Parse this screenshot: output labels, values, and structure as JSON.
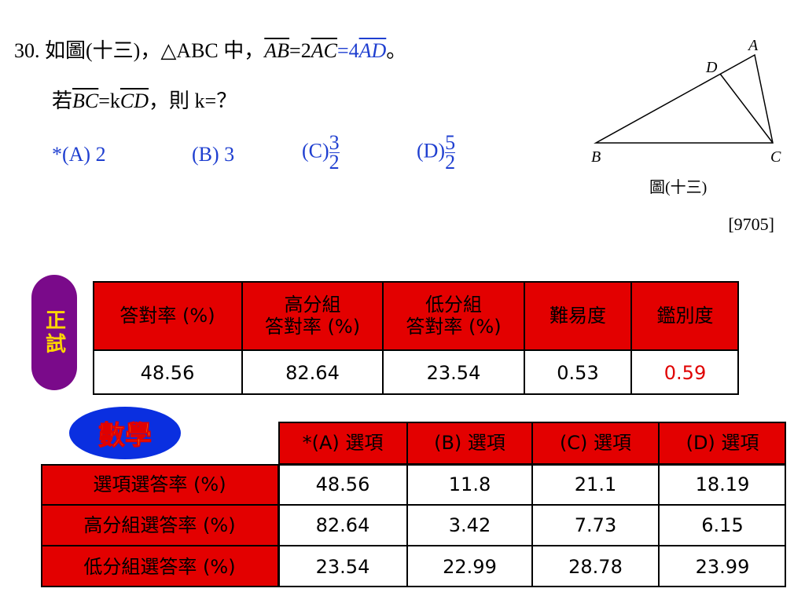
{
  "question": {
    "number": "30.",
    "line1": {
      "intro": "如圖(十三)，△ABC 中，",
      "seg1": "AB",
      "eq1": "=2",
      "seg2": "AC",
      "eq2": "=4",
      "seg3": "AD",
      "end": "。"
    },
    "line2": {
      "intro": "若",
      "seg1": "BC",
      "eq1": "=k",
      "seg2": "CD",
      "end": "，則 k=？"
    },
    "choices": [
      {
        "label": "*(A) 2"
      },
      {
        "label": "(B) 3"
      },
      {
        "label": "(C)",
        "numerator": "3",
        "denominator": "2"
      },
      {
        "label": "(D)",
        "numerator": "5",
        "denominator": "2"
      }
    ]
  },
  "figure": {
    "points": {
      "A": "A",
      "B": "B",
      "C": "C",
      "D": "D"
    },
    "caption": "圖(十三)"
  },
  "source": "[9705]",
  "exam_badge": "正試",
  "subject_badge": "數學",
  "summary_table": {
    "header": [
      "答對率 (%)",
      "高分組\n答對率 (%)",
      "低分組\n答對率 (%)",
      "難易度",
      "鑑別度"
    ],
    "row": [
      "48.56",
      "82.64",
      "23.54",
      "0.53",
      "0.59"
    ]
  },
  "option_table": {
    "header": [
      "*(A) 選項",
      "(B) 選項",
      "(C) 選項",
      "(D) 選項"
    ],
    "rows": [
      [
        "選項選答率 (%)",
        "48.56",
        "11.8",
        "21.1",
        "18.19"
      ],
      [
        "高分組選答率 (%)",
        "82.64",
        "3.42",
        "7.73",
        "6.15"
      ],
      [
        "低分組選答率 (%)",
        "23.54",
        "22.99",
        "28.78",
        "23.99"
      ]
    ]
  }
}
